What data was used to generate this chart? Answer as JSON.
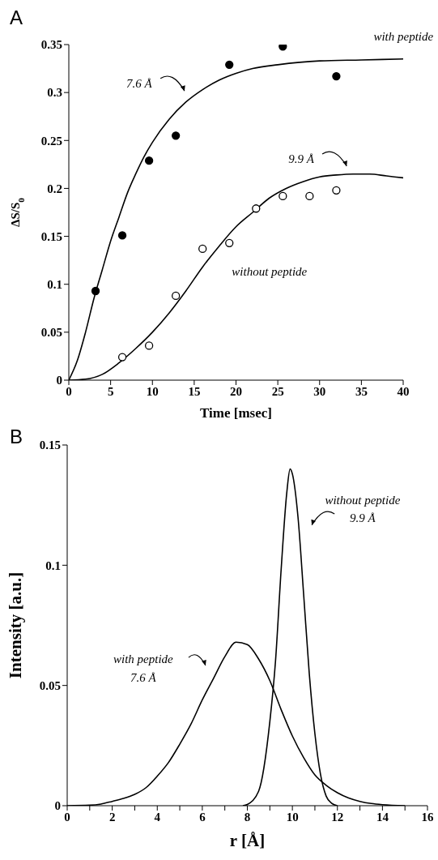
{
  "chart_data": [
    {
      "type": "scatter",
      "title": "A",
      "xlabel": "Time [msec]",
      "ylabel": "ΔS/S$_{0}$",
      "xlim": [
        0,
        40
      ],
      "xticks": [
        0,
        5,
        10,
        15,
        20,
        25,
        30,
        35,
        40
      ],
      "ylim": [
        0,
        0.35
      ],
      "yticks": [
        0,
        0.05,
        0.1,
        0.15,
        0.2,
        0.25,
        0.3,
        0.35
      ],
      "series": [
        {
          "color": "#000000",
          "marker": "circle",
          "x": [
            3.2,
            6.4,
            9.6,
            12.8,
            19.2,
            25.6,
            32
          ],
          "values": [
            0.093,
            0.151,
            0.229,
            0.255,
            0.329,
            0.348,
            0.317
          ]
        },
        {
          "color": "#ffffff",
          "marker": "circle",
          "x": [
            6.4,
            9.6,
            12.8,
            16,
            19.2,
            22.4,
            25.6,
            28.8,
            32
          ],
          "values": [
            0.024,
            0.036,
            0.088,
            0.137,
            0.143,
            0.179,
            0.192,
            0.192,
            0.198
          ]
        },
        {
          "type": "line",
          "color": "#000000",
          "marker": "none",
          "x": [
            0,
            1,
            2,
            3,
            4,
            5,
            6,
            7,
            8,
            9,
            10,
            12,
            14,
            16,
            18,
            20,
            22,
            25,
            30,
            35,
            40
          ],
          "values": [
            0,
            0.02,
            0.05,
            0.085,
            0.115,
            0.145,
            0.17,
            0.195,
            0.215,
            0.233,
            0.248,
            0.272,
            0.29,
            0.303,
            0.313,
            0.32,
            0.325,
            0.329,
            0.333,
            0.334,
            0.335
          ]
        },
        {
          "type": "line",
          "color": "#000000",
          "marker": "none",
          "x": [
            0,
            2,
            4,
            6,
            8,
            10,
            12,
            14,
            16,
            18,
            20,
            22,
            24,
            26,
            28,
            30,
            32,
            34,
            36,
            38,
            40
          ],
          "values": [
            0,
            0.001,
            0.006,
            0.018,
            0.033,
            0.05,
            0.07,
            0.093,
            0.118,
            0.14,
            0.16,
            0.175,
            0.19,
            0.2,
            0.207,
            0.212,
            0.214,
            0.215,
            0.215,
            0.213,
            0.211
          ]
        }
      ],
      "annotations": [
        "with peptide",
        "7.6 Å",
        "9.9 Å",
        "without peptide"
      ]
    },
    {
      "type": "line",
      "title": "B",
      "xlabel": "r  [Å]",
      "ylabel": "Intensity  [a.u.]",
      "xlim": [
        0,
        16
      ],
      "xticks": [
        0,
        {
          "value": 1,
          "label": null
        },
        2,
        {
          "value": 3,
          "label": null
        },
        4,
        {
          "value": 5,
          "label": null
        },
        6,
        {
          "value": 7,
          "label": null
        },
        8,
        {
          "value": 9,
          "label": null
        },
        10,
        {
          "value": 11,
          "label": null
        },
        12,
        {
          "value": 13,
          "label": null
        },
        14,
        {
          "value": 15,
          "label": null
        },
        16
      ],
      "ylim": [
        0,
        0.15
      ],
      "yticks": [
        0,
        0.05,
        0.1,
        0.15
      ],
      "series": [
        {
          "color": "#000000",
          "marker": "none",
          "x": [
            0,
            1,
            1.5,
            2,
            2.5,
            3,
            3.5,
            4,
            4.5,
            5,
            5.5,
            6,
            6.5,
            7,
            7.5,
            8,
            8.5,
            9,
            9.5,
            10,
            10.5,
            11,
            11.5,
            12,
            12.5,
            13,
            13.5,
            14,
            15
          ],
          "values": [
            0,
            0.0002,
            0.0007,
            0.0018,
            0.003,
            0.0047,
            0.0075,
            0.0123,
            0.018,
            0.0256,
            0.034,
            0.044,
            0.053,
            0.062,
            0.068,
            0.067,
            0.061,
            0.052,
            0.04,
            0.029,
            0.02,
            0.0128,
            0.0085,
            0.0054,
            0.0032,
            0.0018,
            0.0009,
            0.0004,
            0
          ]
        },
        {
          "color": "#000000",
          "marker": "none",
          "x": [
            7.8,
            8,
            8.5,
            9,
            9.25,
            9.5,
            9.75,
            9.9,
            10,
            10.25,
            10.5,
            10.75,
            11,
            11.25,
            11.5,
            11.75,
            12
          ],
          "values": [
            0,
            0.0005,
            0.006,
            0.035,
            0.06,
            0.098,
            0.13,
            0.14,
            0.138,
            0.12,
            0.088,
            0.055,
            0.03,
            0.013,
            0.004,
            0.001,
            0
          ]
        }
      ],
      "annotations": [
        "without peptide",
        "9.9 Å",
        "with peptide",
        "7.6 Å"
      ]
    }
  ]
}
